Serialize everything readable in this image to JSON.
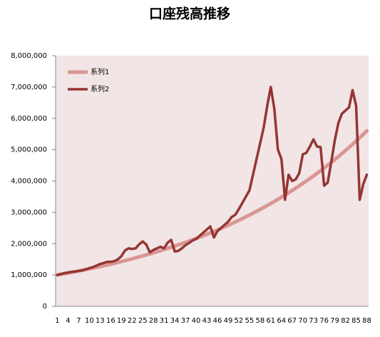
{
  "chart_data": {
    "type": "line",
    "title": "口座残高推移",
    "categories": [
      1,
      null,
      null,
      4,
      null,
      null,
      7,
      null,
      null,
      10,
      null,
      null,
      13,
      null,
      null,
      16,
      null,
      null,
      19,
      null,
      null,
      22,
      null,
      null,
      25,
      null,
      null,
      28,
      null,
      null,
      31,
      null,
      null,
      34,
      null,
      null,
      37,
      null,
      null,
      40,
      null,
      null,
      43,
      null,
      null,
      46,
      null,
      null,
      49,
      null,
      null,
      52,
      null,
      null,
      55,
      null,
      null,
      58,
      null,
      null,
      61,
      null,
      null,
      64,
      null,
      null,
      67,
      null,
      null,
      70,
      null,
      null,
      73,
      null,
      null,
      76,
      null,
      null,
      79,
      null,
      null,
      82,
      null,
      null,
      85,
      null,
      null,
      88
    ],
    "series": [
      {
        "name": "系列1",
        "color": "#d99694",
        "values": [
          1000000,
          1020000,
          1040000,
          1061000,
          1082000,
          1104000,
          1126000,
          1149000,
          1172000,
          1195000,
          1219000,
          1243000,
          1268000,
          1294000,
          1319000,
          1346000,
          1373000,
          1400000,
          1428000,
          1457000,
          1486000,
          1516000,
          1546000,
          1577000,
          1608000,
          1641000,
          1673000,
          1707000,
          1741000,
          1776000,
          1811000,
          1848000,
          1885000,
          1922000,
          1961000,
          2000000,
          2040000,
          2081000,
          2122000,
          2165000,
          2208000,
          2252000,
          2297000,
          2343000,
          2390000,
          2438000,
          2487000,
          2536000,
          2587000,
          2639000,
          2692000,
          2745000,
          2800000,
          2856000,
          2913000,
          2972000,
          3031000,
          3092000,
          3154000,
          3217000,
          3281000,
          3347000,
          3414000,
          3482000,
          3551000,
          3623000,
          3695000,
          3769000,
          3844000,
          3921000,
          4000000,
          4080000,
          4161000,
          4244000,
          4329000,
          4416000,
          4504000,
          4594000,
          4686000,
          4780000,
          4875000,
          4973000,
          5072000,
          5174000,
          5277000,
          5383000,
          5490000,
          5600000
        ]
      },
      {
        "name": "系列2",
        "color": "#943634",
        "values": [
          1000000,
          1030000,
          1060000,
          1080000,
          1100000,
          1110000,
          1130000,
          1150000,
          1180000,
          1220000,
          1250000,
          1300000,
          1350000,
          1380000,
          1420000,
          1420000,
          1440000,
          1500000,
          1600000,
          1780000,
          1850000,
          1830000,
          1850000,
          1980000,
          2070000,
          1970000,
          1720000,
          1800000,
          1850000,
          1900000,
          1850000,
          2030000,
          2120000,
          1750000,
          1770000,
          1850000,
          1950000,
          2020000,
          2100000,
          2150000,
          2250000,
          2350000,
          2450000,
          2550000,
          2200000,
          2400000,
          2500000,
          2600000,
          2700000,
          2850000,
          2920000,
          3100000,
          3300000,
          3500000,
          3700000,
          4200000,
          4700000,
          5200000,
          5700000,
          6400000,
          7000000,
          6300000,
          5000000,
          4700000,
          3400000,
          4200000,
          4000000,
          4050000,
          4250000,
          4850000,
          4900000,
          5100000,
          5330000,
          5100000,
          5080000,
          3850000,
          3950000,
          4600000,
          5300000,
          5850000,
          6150000,
          6250000,
          6350000,
          6900000,
          6400000,
          3400000,
          3900000,
          4200000
        ]
      }
    ],
    "ylim": [
      0,
      8000000
    ],
    "yticks": [
      0,
      {
        "value": 1000000,
        "label": "1,000,000"
      },
      {
        "value": 2000000,
        "label": "2,000,000"
      },
      {
        "value": 3000000,
        "label": "3,000,000"
      },
      {
        "value": 4000000,
        "label": "4,000,000"
      },
      {
        "value": 5000000,
        "label": "5,000,000"
      },
      {
        "value": 6000000,
        "label": "6,000,000"
      },
      {
        "value": 7000000,
        "label": "7,000,000"
      },
      {
        "value": 8000000,
        "label": "8,000,000"
      }
    ],
    "legend": "top-left"
  }
}
